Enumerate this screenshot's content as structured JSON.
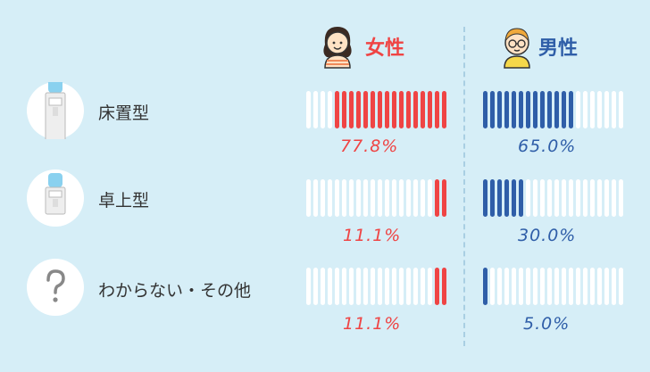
{
  "headers": {
    "female": {
      "label": "女性",
      "color": "#ef4444"
    },
    "male": {
      "label": "男性",
      "color": "#2f5ea8"
    }
  },
  "rows": [
    {
      "category": "床置型",
      "icon": "floor-water-server-icon",
      "female": "77.8%",
      "male": "65.0%"
    },
    {
      "category": "卓上型",
      "icon": "tabletop-water-server-icon",
      "female": "11.1%",
      "male": "30.0%"
    },
    {
      "category": "わからない・その他",
      "icon": "question-icon",
      "female": "11.1%",
      "male": "5.0%"
    }
  ],
  "chart_data": {
    "type": "bar",
    "categories": [
      "床置型",
      "卓上型",
      "わからない・その他"
    ],
    "series": [
      {
        "name": "女性",
        "values": [
          77.8,
          11.1,
          11.1
        ],
        "color": "#ef4444"
      },
      {
        "name": "男性",
        "values": [
          65.0,
          30.0,
          5.0
        ],
        "color": "#2f5ea8"
      }
    ],
    "ylim": [
      0,
      100
    ],
    "legend": "top",
    "segments_per_bar": 20,
    "empty_color": "#ffffff"
  }
}
